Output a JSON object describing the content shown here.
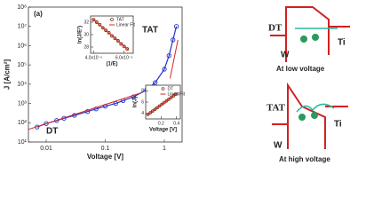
{
  "chart_data": [
    {
      "type": "line",
      "xscale": "log",
      "yscale": "log",
      "xlabel": "Voltage [V]",
      "ylabel": "J [A/cm²]",
      "annotations": [
        "(a)",
        "TAT",
        "DT"
      ],
      "xlim": [
        0.005,
        2
      ],
      "ylim": [
        10,
        100000000
      ],
      "xticks": [
        0.01,
        0.1,
        1
      ],
      "yticks": [
        {
          "value": 10,
          "label": "10¹"
        },
        {
          "value": 100,
          "label": "10²"
        },
        {
          "value": 1000,
          "label": "10³"
        },
        {
          "value": 10000,
          "label": "10⁴"
        },
        {
          "value": 100000,
          "label": "10⁵"
        },
        {
          "value": 1000000,
          "label": "10⁶"
        },
        {
          "value": 10000000,
          "label": "10⁷"
        },
        {
          "value": 100000000,
          "label": "10⁸"
        }
      ],
      "series": [
        {
          "color": "#2233cc",
          "marker": true,
          "x": [
            0.007,
            0.01,
            0.015,
            0.02,
            0.03,
            0.05,
            0.07,
            0.1,
            0.15,
            0.2,
            0.3,
            0.5,
            0.7,
            1,
            1.2,
            1.4,
            1.6
          ],
          "values": [
            60,
            90,
            130,
            170,
            240,
            380,
            520,
            720,
            1000,
            1400,
            2200,
            5000,
            12000,
            60000,
            300000,
            2000000,
            10000000
          ]
        },
        {
          "color": "#dd2222",
          "marker": false,
          "x": [
            0.005,
            0.4
          ],
          "values": [
            45,
            3500
          ]
        },
        {
          "color": "#dd2222",
          "marker": false,
          "x": [
            1.25,
            1.7
          ],
          "values": [
            20000,
            2000000
          ]
        }
      ]
    },
    {
      "type": "line",
      "xlabel": "(1/E)",
      "ylabel": "ln(J/E²)",
      "xlim": [
        3.8e-06,
        6.6e-06
      ],
      "ylim": [
        27,
        33
      ],
      "xticks": [
        {
          "value": 4e-06,
          "label": "4.0x10⁻⁶"
        },
        {
          "value": 6e-06,
          "label": "6.0x10⁻⁶"
        }
      ],
      "yticks": [
        28,
        30,
        32
      ],
      "series": [
        {
          "name": "TAT",
          "color": "#7a3a1a",
          "marker": true,
          "x": [
            4e-06,
            4.2e-06,
            4.4e-06,
            4.6e-06,
            4.8e-06,
            5e-06,
            5.2e-06,
            5.4e-06,
            5.6e-06,
            5.8e-06,
            6e-06,
            6.2e-06
          ],
          "values": [
            32.4,
            32,
            31.6,
            31.1,
            30.7,
            30.3,
            29.8,
            29.4,
            29,
            28.5,
            28.1,
            27.7
          ]
        },
        {
          "name": "Linear Fit",
          "color": "#dd2222",
          "marker": false,
          "x": [
            3.9e-06,
            6.3e-06
          ],
          "values": [
            32.6,
            27.5
          ]
        }
      ]
    },
    {
      "type": "line",
      "xlabel": "Voltage [V]",
      "ylabel": "ln(J)",
      "xlim": [
        0,
        0.45
      ],
      "ylim": [
        3,
        9
      ],
      "xticks": [
        0.2,
        0.4
      ],
      "yticks": [
        4,
        6,
        8
      ],
      "series": [
        {
          "name": "DT",
          "color": "#7a3a1a",
          "marker": true,
          "x": [
            0.03,
            0.06,
            0.09,
            0.12,
            0.15,
            0.18,
            0.21,
            0.24,
            0.27,
            0.3,
            0.33,
            0.36,
            0.39
          ],
          "values": [
            3.8,
            4.1,
            4.4,
            4.7,
            5,
            5.3,
            5.6,
            5.9,
            6.2,
            6.5,
            6.8,
            7.1,
            7.4
          ]
        },
        {
          "name": "LinearFit",
          "color": "#dd2222",
          "marker": false,
          "x": [
            0.02,
            0.42
          ],
          "values": [
            3.7,
            7.7
          ]
        }
      ]
    }
  ],
  "diagrams": {
    "low": {
      "left_label": "DT",
      "metal": "W",
      "right_metal": "Ti",
      "caption": "At low voltage"
    },
    "high": {
      "left_label": "TAT",
      "metal": "W",
      "right_metal": "Ti",
      "caption": "At high voltage"
    }
  }
}
